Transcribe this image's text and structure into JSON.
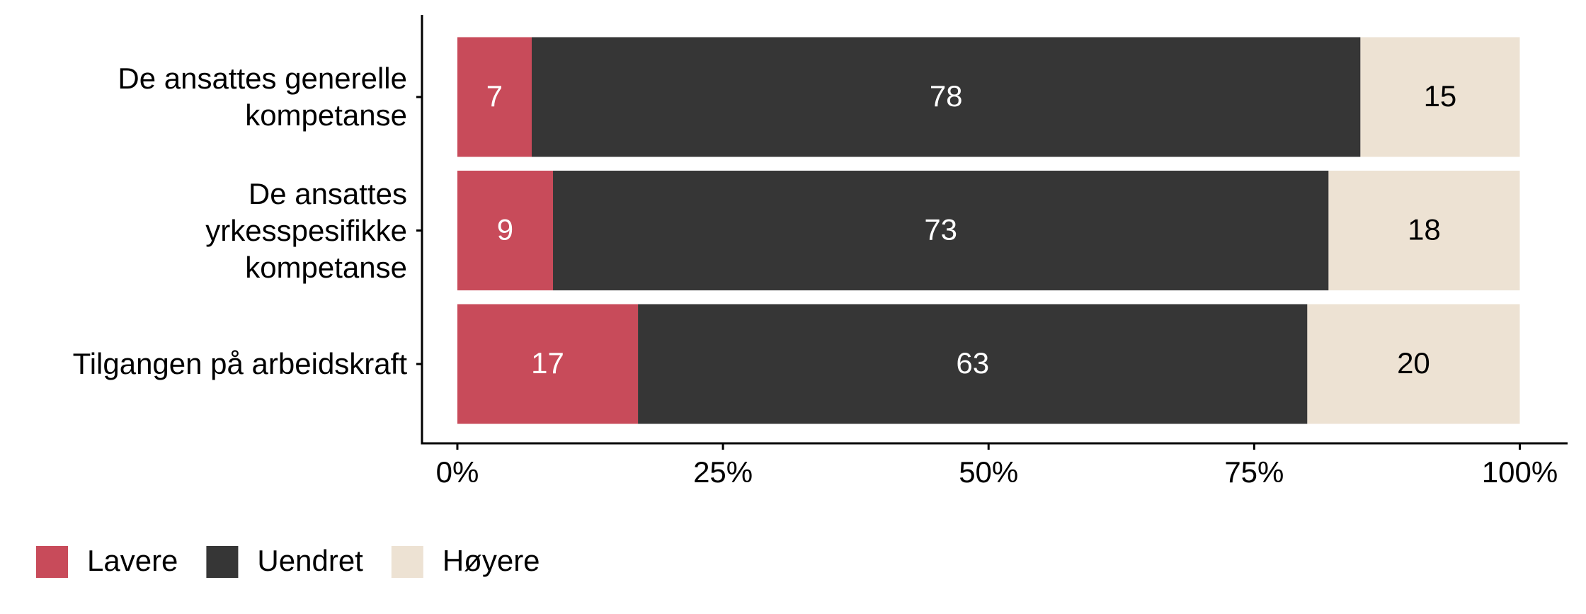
{
  "chart_data": {
    "type": "stacked-bar-horizontal",
    "categories": [
      "De ansattes generelle\nkompetanse",
      "De ansattes\nyrkesspesifikke\nkompetanse",
      "Tilgangen på arbeidskraft"
    ],
    "series": [
      {
        "name": "Lavere",
        "color": "#c84b5a",
        "values": [
          7,
          9,
          17
        ]
      },
      {
        "name": "Uendret",
        "color": "#363636",
        "values": [
          78,
          73,
          63
        ]
      },
      {
        "name": "Høyere",
        "color": "#ede2d3",
        "values": [
          15,
          18,
          20
        ]
      }
    ],
    "xlim": [
      -3.33,
      104.5
    ],
    "xticks": [
      {
        "value": 0,
        "label": "0%"
      },
      {
        "value": 25,
        "label": "25%"
      },
      {
        "value": 50,
        "label": "50%"
      },
      {
        "value": 75,
        "label": "75%"
      },
      {
        "value": 100,
        "label": "100%"
      }
    ],
    "legend": "bottom-left"
  }
}
